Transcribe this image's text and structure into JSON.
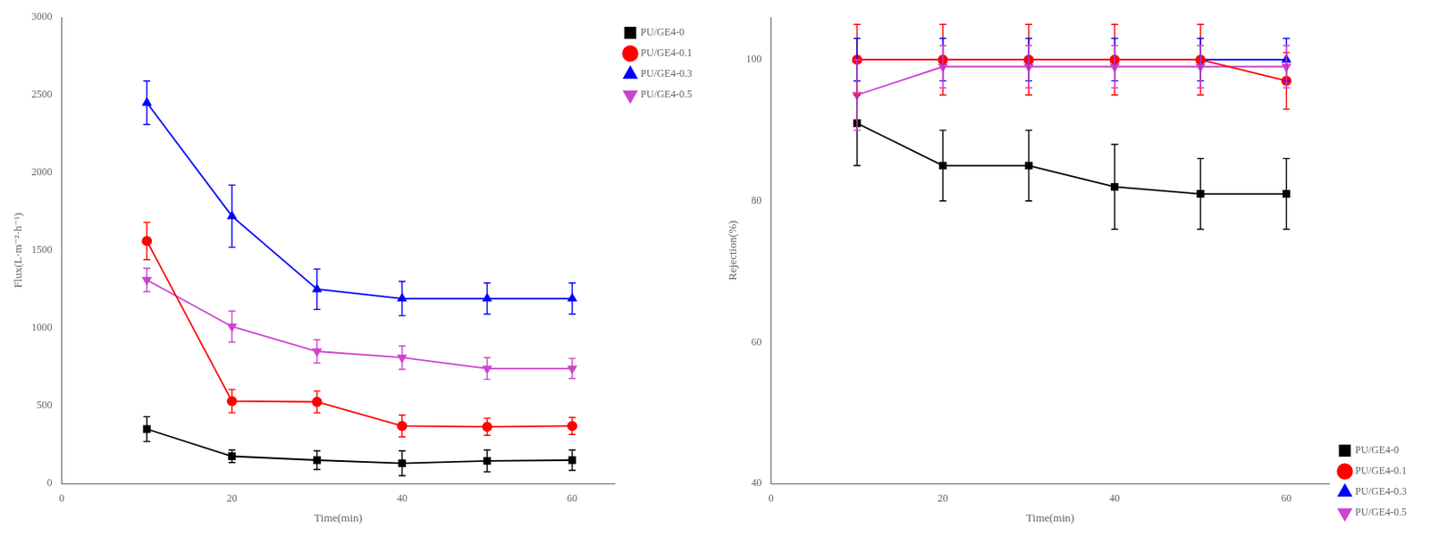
{
  "chart_data": [
    {
      "type": "line",
      "x": [
        10,
        20,
        30,
        40,
        50,
        60
      ],
      "xlabel": "Time(min)",
      "ylabel": "Flux(L·m⁻²·h⁻¹)",
      "xlim": [
        0,
        65
      ],
      "xticks": [
        0,
        20,
        40,
        60
      ],
      "ylim": [
        0,
        3000
      ],
      "yticks": [
        0,
        500,
        1000,
        1500,
        2000,
        2500,
        3000
      ],
      "grid": false,
      "legend": "upper right",
      "series": [
        {
          "name": "PU/GE4-0",
          "color": "#000000",
          "marker": "square",
          "values": [
            350,
            175,
            150,
            130,
            145,
            150
          ],
          "errors": [
            80,
            40,
            60,
            80,
            70,
            65
          ]
        },
        {
          "name": "PU/GE4-0.1",
          "color": "#ff0000",
          "marker": "circle",
          "values": [
            1560,
            530,
            525,
            370,
            365,
            370
          ],
          "errors": [
            120,
            75,
            70,
            70,
            55,
            55
          ]
        },
        {
          "name": "PU/GE4-0.3",
          "color": "#0000ff",
          "marker": "triangle-up",
          "values": [
            2450,
            1720,
            1250,
            1190,
            1190,
            1190
          ],
          "errors": [
            140,
            200,
            130,
            110,
            100,
            100
          ]
        },
        {
          "name": "PU/GE4-0.5",
          "color": "#cc44cc",
          "marker": "triangle-down",
          "values": [
            1310,
            1010,
            850,
            810,
            740,
            740
          ],
          "errors": [
            75,
            100,
            75,
            75,
            70,
            65
          ]
        }
      ]
    },
    {
      "type": "line",
      "x": [
        10,
        20,
        30,
        40,
        50,
        60
      ],
      "xlabel": "Time(min)",
      "ylabel": "Rejection(%)",
      "xlim": [
        0,
        65
      ],
      "xticks": [
        0,
        20,
        40,
        60
      ],
      "ylim": [
        40,
        106
      ],
      "yticks": [
        40,
        60,
        80,
        100
      ],
      "grid": false,
      "legend": "lower right",
      "series": [
        {
          "name": "PU/GE4-0",
          "color": "#000000",
          "marker": "square",
          "values": [
            91,
            85,
            85,
            82,
            81,
            81
          ],
          "errors": [
            6,
            5,
            5,
            6,
            5,
            5
          ]
        },
        {
          "name": "PU/GE4-0.1",
          "color": "#ff0000",
          "marker": "circle",
          "values": [
            100,
            100,
            100,
            100,
            100,
            97
          ],
          "errors": [
            5,
            5,
            5,
            5,
            5,
            4
          ]
        },
        {
          "name": "PU/GE4-0.3",
          "color": "#0000ff",
          "marker": "triangle-up",
          "values": [
            100,
            100,
            100,
            100,
            100,
            100
          ],
          "errors": [
            3,
            3,
            3,
            3,
            3,
            3
          ]
        },
        {
          "name": "PU/GE4-0.5",
          "color": "#cc44cc",
          "marker": "triangle-down",
          "values": [
            95,
            99,
            99,
            99,
            99,
            99
          ],
          "errors": [
            5,
            3,
            3,
            3,
            3,
            3
          ]
        }
      ]
    }
  ]
}
